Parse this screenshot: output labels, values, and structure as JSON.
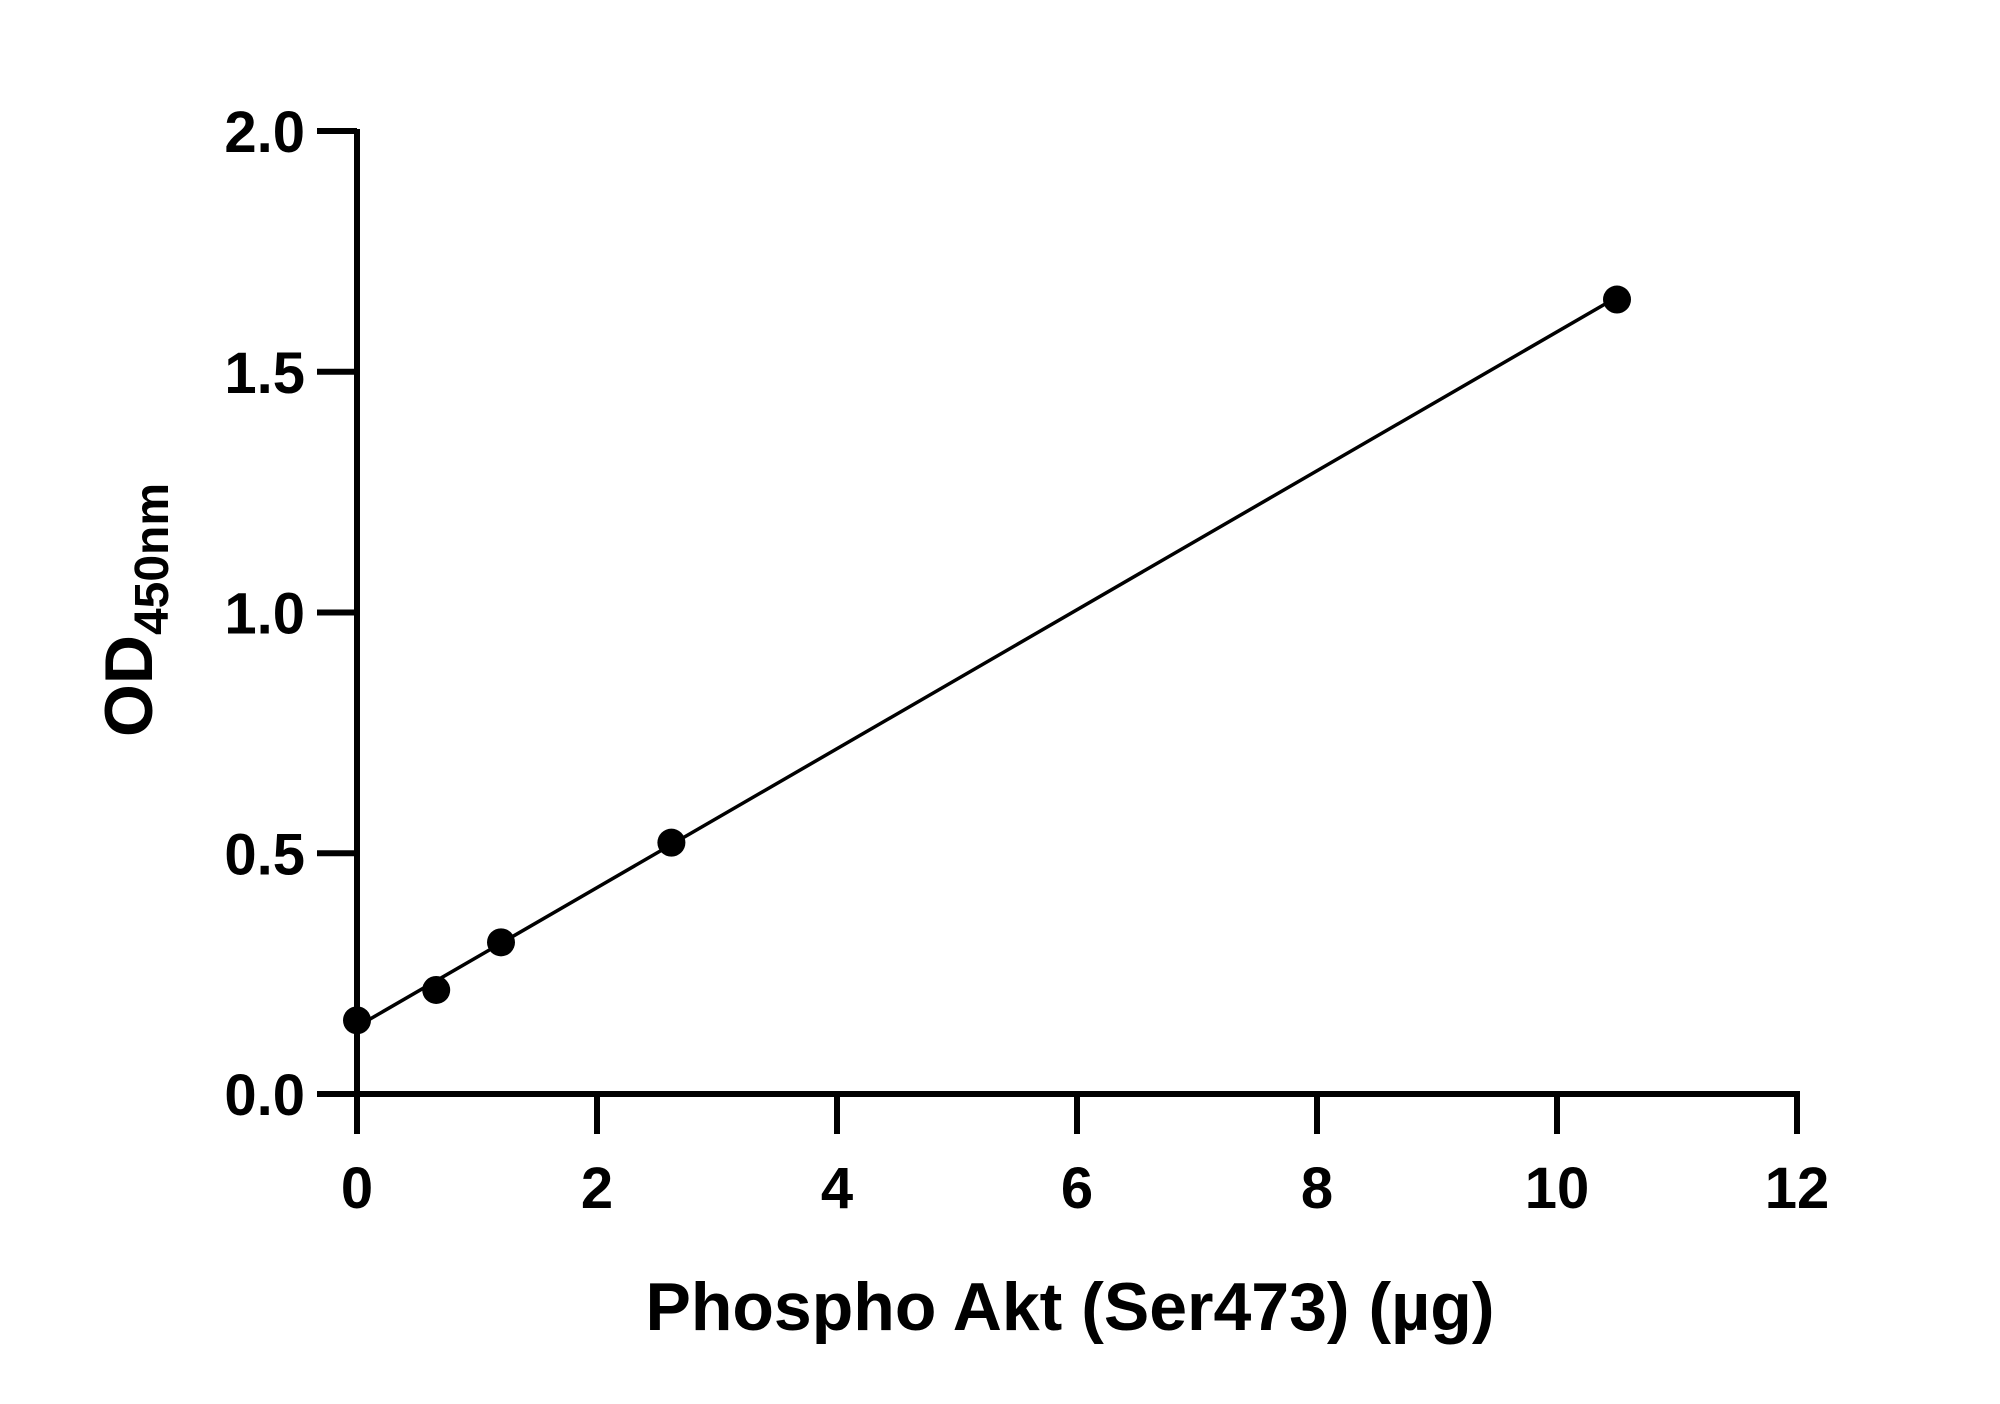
{
  "chart_data": {
    "type": "scatter",
    "xlabel": "Phospho Akt (Ser473) (µg)",
    "ylabel": {
      "main": "OD",
      "subscript": "450nm"
    },
    "xlim": [
      0,
      12
    ],
    "ylim": [
      0,
      2.0
    ],
    "x_ticks": [
      0,
      2,
      4,
      6,
      8,
      10,
      12
    ],
    "x_tick_labels": [
      "0",
      "2",
      "4",
      "6",
      "8",
      "10",
      "12"
    ],
    "y_ticks": [
      0,
      0.5,
      1.0,
      1.5,
      2.0
    ],
    "y_tick_labels": [
      "0.0",
      "0.5",
      "1.0",
      "1.5",
      "2.0"
    ],
    "grid": false,
    "series": [
      {
        "points": [
          {
            "x": 0,
            "y": 0.153
          },
          {
            "x": 0.66,
            "y": 0.216
          },
          {
            "x": 1.2,
            "y": 0.315
          },
          {
            "x": 2.62,
            "y": 0.522
          },
          {
            "x": 10.5,
            "y": 1.65
          }
        ],
        "fit_line": {
          "x": [
            0,
            10.5
          ],
          "y": [
            0.14,
            1.655
          ]
        },
        "color": "#000000"
      }
    ]
  }
}
